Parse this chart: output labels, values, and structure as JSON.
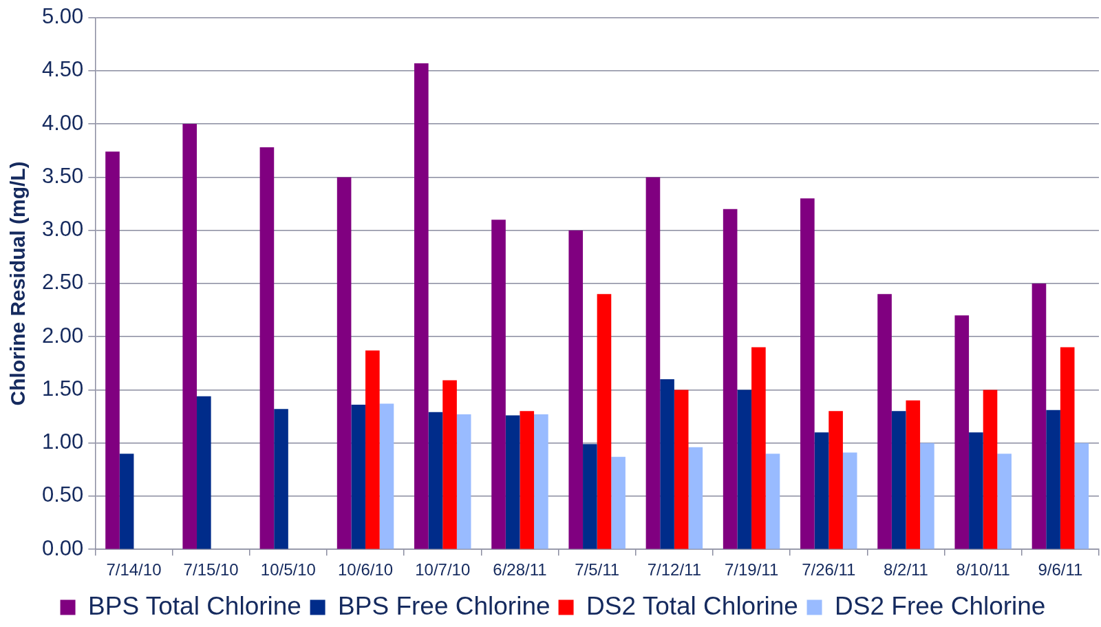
{
  "chart_data": {
    "type": "bar",
    "ylabel": "Chlorine Residual (mg/L)",
    "categories": [
      "7/14/10",
      "7/15/10",
      "10/5/10",
      "10/6/10",
      "10/7/10",
      "6/28/11",
      "7/5/11",
      "7/12/11",
      "7/19/11",
      "7/26/11",
      "8/2/11",
      "8/10/11",
      "9/6/11"
    ],
    "series": [
      {
        "name": "BPS Total Chlorine",
        "color": "#800080",
        "values": [
          3.74,
          4.0,
          3.78,
          3.5,
          4.57,
          3.1,
          3.0,
          3.5,
          3.2,
          3.3,
          2.4,
          2.2,
          2.5
        ]
      },
      {
        "name": "BPS Free Chlorine",
        "color": "#002c8a",
        "values": [
          0.9,
          1.44,
          1.32,
          1.36,
          1.29,
          1.26,
          0.99,
          1.6,
          1.5,
          1.1,
          1.3,
          1.1,
          1.31
        ]
      },
      {
        "name": "DS2 Total Chlorine",
        "color": "#ff0000",
        "values": [
          null,
          null,
          null,
          1.87,
          1.59,
          1.3,
          2.4,
          1.5,
          1.9,
          1.3,
          1.4,
          1.5,
          1.9
        ]
      },
      {
        "name": "DS2 Free Chlorine",
        "color": "#99bbff",
        "values": [
          null,
          null,
          null,
          1.37,
          1.27,
          1.27,
          0.87,
          0.96,
          0.9,
          0.91,
          1.0,
          0.9,
          1.0
        ]
      }
    ],
    "ylim": [
      0,
      5
    ],
    "yticks": [
      {
        "value": 0,
        "label": "0.00"
      },
      {
        "value": 0.5,
        "label": "0.50"
      },
      {
        "value": 1,
        "label": "1.00"
      },
      {
        "value": 1.5,
        "label": "1.50"
      },
      {
        "value": 2,
        "label": "2.00"
      },
      {
        "value": 2.5,
        "label": "2.50"
      },
      {
        "value": 3,
        "label": "3.00"
      },
      {
        "value": 3.5,
        "label": "3.50"
      },
      {
        "value": 4,
        "label": "4.00"
      },
      {
        "value": 4.5,
        "label": "4.50"
      },
      {
        "value": 5,
        "label": "5.00"
      }
    ],
    "grid": "y",
    "legend": "bottom"
  }
}
